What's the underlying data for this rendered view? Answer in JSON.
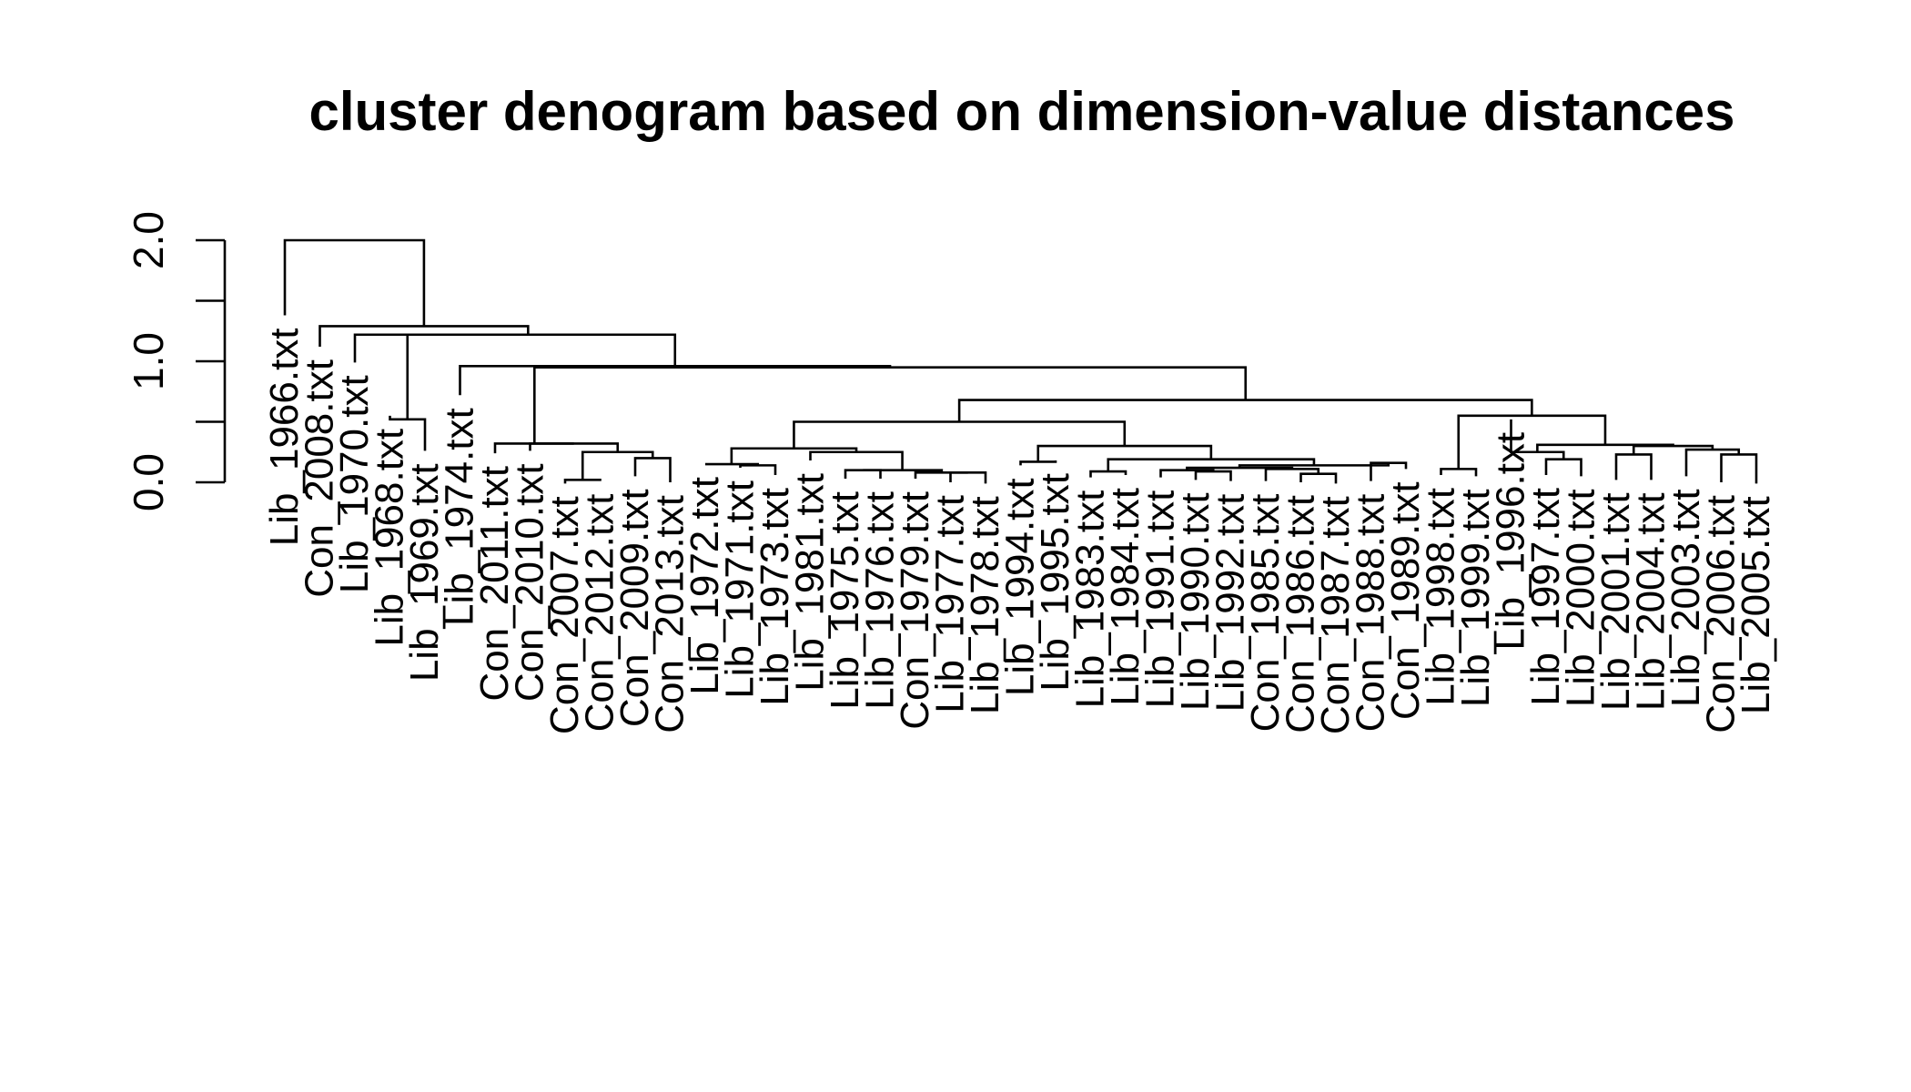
{
  "chart_data": {
    "type": "dendrogram",
    "title": "cluster denogram based on dimension-value distances",
    "xlabel": "",
    "ylabel": "",
    "ylim": [
      0,
      2.0
    ],
    "y_ticks": [
      0.0,
      0.5,
      1.0,
      1.5,
      2.0
    ],
    "y_tick_labels": [
      "0.0",
      "1.0",
      "2.0"
    ],
    "leaves": [
      "Lib_1966.txt",
      "Con_2008.txt",
      "Lib_1970.txt",
      "Lib_1968.txt",
      "Lib_1969.txt",
      "Lib_1974.txt",
      "Con_2011.txt",
      "Con_2010.txt",
      "Con_2007.txt",
      "Con_2012.txt",
      "Con_2009.txt",
      "Con_2013.txt",
      "Lib_1972.txt",
      "Lib_1971.txt",
      "Lib_1973.txt",
      "Lib_1981.txt",
      "Lib_1975.txt",
      "Lib_1976.txt",
      "Con_1979.txt",
      "Lib_1977.txt",
      "Lib_1978.txt",
      "Lib_1994.txt",
      "Lib_1995.txt",
      "Lib_1983.txt",
      "Lib_1984.txt",
      "Lib_1991.txt",
      "Lib_1990.txt",
      "Lib_1992.txt",
      "Con_1985.txt",
      "Con_1986.txt",
      "Con_1987.txt",
      "Con_1988.txt",
      "Con_1989.txt",
      "Lib_1998.txt",
      "Lib_1999.txt",
      "Lib_1996.txt",
      "Lib_1997.txt",
      "Lib_2000.txt",
      "Lib_2001.txt",
      "Lib_2004.txt",
      "Lib_2003.txt",
      "Con_2006.txt",
      "Lib_2005.txt"
    ],
    "leaf_heights": [
      1.38,
      1.12,
      0.99,
      0.55,
      0.26,
      0.72,
      0.24,
      0.26,
      -0.01,
      0.01,
      0.05,
      0.0,
      0.15,
      0.12,
      0.06,
      0.18,
      0.03,
      0.03,
      0.03,
      0.0,
      -0.01,
      0.14,
      0.18,
      0.04,
      0.06,
      0.04,
      0.02,
      0.01,
      0.01,
      0.0,
      -0.01,
      0.01,
      0.11,
      0.06,
      0.05,
      0.52,
      0.06,
      0.05,
      0.02,
      0.02,
      0.05,
      0.0,
      -0.01
    ],
    "merges": [
      {
        "a": {
          "leaf": 8
        },
        "b": {
          "leaf": 9
        },
        "height": 0.02
      },
      {
        "a": {
          "leaf": 10
        },
        "b": {
          "leaf": 11
        },
        "height": 0.2
      },
      {
        "a": {
          "merge": 0
        },
        "b": {
          "merge": 1
        },
        "height": 0.25
      },
      {
        "a": {
          "leaf": 7
        },
        "b": {
          "merge": 2
        },
        "height": 0.32
      },
      {
        "a": {
          "leaf": 6
        },
        "b": {
          "merge": 3
        },
        "height": 0.32
      },
      {
        "a": {
          "leaf": 13
        },
        "b": {
          "leaf": 14
        },
        "height": 0.14
      },
      {
        "a": {
          "leaf": 12
        },
        "b": {
          "merge": 5
        },
        "height": 0.15
      },
      {
        "a": {
          "leaf": 16
        },
        "b": {
          "leaf": 17
        },
        "height": 0.1
      },
      {
        "a": {
          "leaf": 19
        },
        "b": {
          "leaf": 20
        },
        "height": 0.08
      },
      {
        "a": {
          "leaf": 18
        },
        "b": {
          "merge": 8
        },
        "height": 0.08
      },
      {
        "a": {
          "merge": 7
        },
        "b": {
          "merge": 9
        },
        "height": 0.1
      },
      {
        "a": {
          "leaf": 15
        },
        "b": {
          "merge": 10
        },
        "height": 0.25
      },
      {
        "a": {
          "merge": 6
        },
        "b": {
          "merge": 11
        },
        "height": 0.28
      },
      {
        "a": {
          "leaf": 21
        },
        "b": {
          "leaf": 22
        },
        "height": 0.17
      },
      {
        "a": {
          "leaf": 23
        },
        "b": {
          "leaf": 24
        },
        "height": 0.09
      },
      {
        "a": {
          "leaf": 26
        },
        "b": {
          "leaf": 27
        },
        "height": 0.09
      },
      {
        "a": {
          "leaf": 25
        },
        "b": {
          "merge": 15
        },
        "height": 0.1
      },
      {
        "a": {
          "leaf": 29
        },
        "b": {
          "leaf": 30
        },
        "height": 0.07
      },
      {
        "a": {
          "leaf": 28
        },
        "b": {
          "merge": 17
        },
        "height": 0.11
      },
      {
        "a": {
          "merge": 16
        },
        "b": {
          "merge": 18
        },
        "height": 0.12
      },
      {
        "a": {
          "leaf": 31
        },
        "b": {
          "leaf": 32
        },
        "height": 0.16
      },
      {
        "a": {
          "merge": 19
        },
        "b": {
          "merge": 20
        },
        "height": 0.14
      },
      {
        "a": {
          "merge": 14
        },
        "b": {
          "merge": 21
        },
        "height": 0.19
      },
      {
        "a": {
          "merge": 13
        },
        "b": {
          "merge": 22
        },
        "height": 0.3
      },
      {
        "a": {
          "merge": 12
        },
        "b": {
          "merge": 23
        },
        "height": 0.5
      },
      {
        "a": {
          "leaf": 33
        },
        "b": {
          "leaf": 34
        },
        "height": 0.11
      },
      {
        "a": {
          "leaf": 36
        },
        "b": {
          "leaf": 37
        },
        "height": 0.19
      },
      {
        "a": {
          "leaf": 35
        },
        "b": {
          "merge": 26
        },
        "height": 0.25
      },
      {
        "a": {
          "leaf": 38
        },
        "b": {
          "leaf": 39
        },
        "height": 0.23
      },
      {
        "a": {
          "leaf": 41
        },
        "b": {
          "leaf": 42
        },
        "height": 0.23
      },
      {
        "a": {
          "leaf": 40
        },
        "b": {
          "merge": 29
        },
        "height": 0.27
      },
      {
        "a": {
          "merge": 28
        },
        "b": {
          "merge": 30
        },
        "height": 0.3
      },
      {
        "a": {
          "merge": 27
        },
        "b": {
          "merge": 31
        },
        "height": 0.31
      },
      {
        "a": {
          "merge": 25
        },
        "b": {
          "merge": 32
        },
        "height": 0.55
      },
      {
        "a": {
          "merge": 24
        },
        "b": {
          "merge": 33
        },
        "height": 0.68
      },
      {
        "a": {
          "merge": 4
        },
        "b": {
          "merge": 34
        },
        "height": 0.95
      },
      {
        "a": {
          "leaf": 5
        },
        "b": {
          "merge": 35
        },
        "height": 0.96
      },
      {
        "a": {
          "leaf": 3
        },
        "b": {
          "leaf": 4
        },
        "height": 0.52
      },
      {
        "a": {
          "leaf": 2
        },
        "b": {
          "merge": 37
        },
        "height": 1.22
      },
      {
        "a": {
          "merge": 38
        },
        "b": {
          "merge": 36
        },
        "height": 1.22
      },
      {
        "a": {
          "leaf": 1
        },
        "b": {
          "merge": 39
        },
        "height": 1.29
      },
      {
        "a": {
          "leaf": 0
        },
        "b": {
          "merge": 40
        },
        "height": 2.0
      }
    ]
  }
}
